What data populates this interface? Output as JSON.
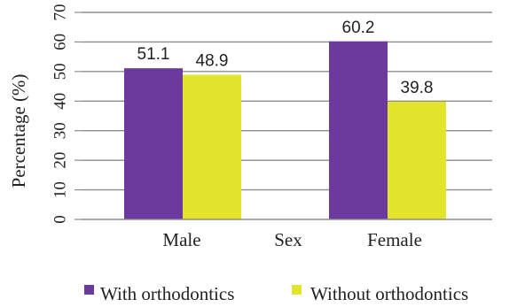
{
  "chart_data": {
    "type": "bar",
    "categories": [
      "Male",
      "Female"
    ],
    "series": [
      {
        "name": "With orthodontics",
        "values": [
          51.1,
          60.2
        ],
        "color": "#6b3a9c"
      },
      {
        "name": "Without orthodontics",
        "values": [
          48.9,
          39.8
        ],
        "color": "#e3e52c"
      }
    ],
    "data_labels": [
      [
        "51.1",
        "60.2"
      ],
      [
        "48.9",
        "39.8"
      ]
    ],
    "xlabel": "Sex",
    "ylabel": "Percentage   (%)",
    "ylim": [
      0,
      70
    ],
    "yticks": [
      "0",
      "10",
      "20",
      "30",
      "40",
      "50",
      "60",
      "70"
    ],
    "grid": true,
    "legend_position": "bottom"
  }
}
